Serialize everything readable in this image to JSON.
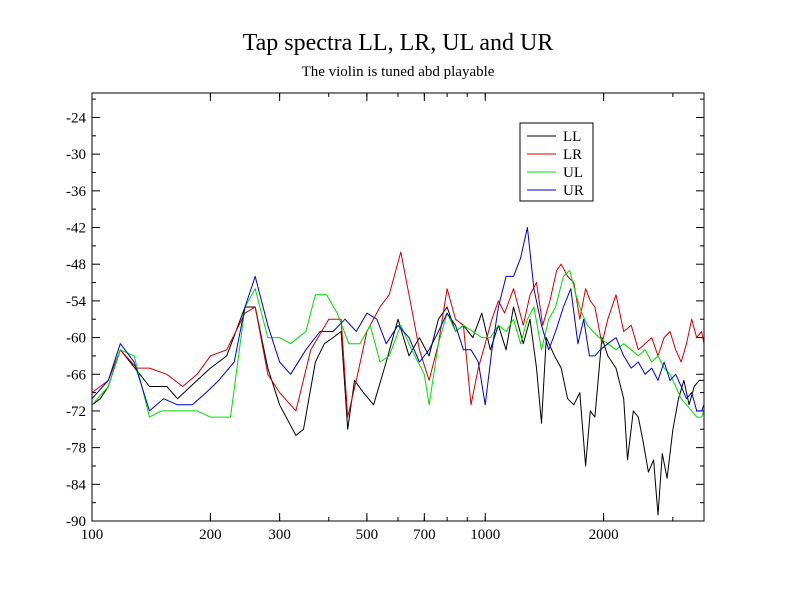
{
  "chart_data": {
    "type": "line",
    "title": "Tap spectra LL, LR, UL and UR",
    "subtitle": "The violin is tuned abd playable",
    "xlabel": "",
    "ylabel": "",
    "x_scale": "log",
    "xlim": [
      100,
      3600
    ],
    "ylim": [
      -90,
      -20
    ],
    "x_ticks": [
      100,
      200,
      300,
      500,
      700,
      1000,
      2000
    ],
    "x_tick_labels": [
      "100",
      "200",
      "300",
      "500",
      "700",
      "1000",
      "2000"
    ],
    "y_ticks": [
      -24,
      -30,
      -36,
      -42,
      -48,
      -54,
      -60,
      -66,
      -72,
      -78,
      -84,
      -90
    ],
    "y_tick_labels": [
      "-24",
      "-30",
      "-36",
      "-42",
      "-48",
      "-54",
      "-60",
      "-66",
      "-72",
      "-78",
      "-84",
      "-90"
    ],
    "legend_position": "top-right",
    "series": [
      {
        "name": "LL",
        "color": "#000000",
        "points": [
          [
            100,
            -71
          ],
          [
            105,
            -70
          ],
          [
            110,
            -68
          ],
          [
            118,
            -62
          ],
          [
            125,
            -64
          ],
          [
            140,
            -68
          ],
          [
            155,
            -68
          ],
          [
            165,
            -70
          ],
          [
            185,
            -67
          ],
          [
            200,
            -65
          ],
          [
            220,
            -63
          ],
          [
            245,
            -55
          ],
          [
            260,
            -55
          ],
          [
            280,
            -65
          ],
          [
            300,
            -71
          ],
          [
            330,
            -76
          ],
          [
            345,
            -75
          ],
          [
            370,
            -64
          ],
          [
            390,
            -61
          ],
          [
            410,
            -60
          ],
          [
            430,
            -59
          ],
          [
            447,
            -75
          ],
          [
            465,
            -67
          ],
          [
            490,
            -69
          ],
          [
            520,
            -71
          ],
          [
            560,
            -64
          ],
          [
            600,
            -57
          ],
          [
            640,
            -63
          ],
          [
            680,
            -60
          ],
          [
            720,
            -63
          ],
          [
            760,
            -57
          ],
          [
            800,
            -55
          ],
          [
            840,
            -59
          ],
          [
            880,
            -58
          ],
          [
            930,
            -60
          ],
          [
            980,
            -56
          ],
          [
            1030,
            -62
          ],
          [
            1080,
            -58
          ],
          [
            1130,
            -62
          ],
          [
            1180,
            -55
          ],
          [
            1250,
            -61
          ],
          [
            1300,
            -57
          ],
          [
            1350,
            -65
          ],
          [
            1390,
            -74
          ],
          [
            1430,
            -60
          ],
          [
            1500,
            -63
          ],
          [
            1560,
            -65
          ],
          [
            1620,
            -70
          ],
          [
            1680,
            -71
          ],
          [
            1740,
            -69
          ],
          [
            1800,
            -81
          ],
          [
            1850,
            -72
          ],
          [
            1900,
            -73
          ],
          [
            1980,
            -60
          ],
          [
            2050,
            -63
          ],
          [
            2150,
            -65
          ],
          [
            2250,
            -70
          ],
          [
            2300,
            -80
          ],
          [
            2380,
            -72
          ],
          [
            2450,
            -73
          ],
          [
            2520,
            -77
          ],
          [
            2600,
            -82
          ],
          [
            2680,
            -80
          ],
          [
            2750,
            -89
          ],
          [
            2820,
            -79
          ],
          [
            2900,
            -83
          ],
          [
            3000,
            -75
          ],
          [
            3100,
            -70
          ],
          [
            3200,
            -67
          ],
          [
            3300,
            -71
          ],
          [
            3400,
            -68
          ],
          [
            3500,
            -67
          ],
          [
            3600,
            -67
          ]
        ]
      },
      {
        "name": "LR",
        "color": "#d00000",
        "points": [
          [
            100,
            -69
          ],
          [
            110,
            -67
          ],
          [
            118,
            -62
          ],
          [
            130,
            -65
          ],
          [
            140,
            -65
          ],
          [
            155,
            -66
          ],
          [
            170,
            -68
          ],
          [
            185,
            -66
          ],
          [
            200,
            -63
          ],
          [
            220,
            -62
          ],
          [
            245,
            -56
          ],
          [
            260,
            -55
          ],
          [
            280,
            -66
          ],
          [
            300,
            -69
          ],
          [
            330,
            -72
          ],
          [
            360,
            -62
          ],
          [
            400,
            -57
          ],
          [
            430,
            -57
          ],
          [
            447,
            -73
          ],
          [
            470,
            -67
          ],
          [
            500,
            -59
          ],
          [
            540,
            -55
          ],
          [
            570,
            -53
          ],
          [
            610,
            -46
          ],
          [
            640,
            -53
          ],
          [
            680,
            -62
          ],
          [
            720,
            -67
          ],
          [
            760,
            -61
          ],
          [
            800,
            -52
          ],
          [
            840,
            -57
          ],
          [
            880,
            -58
          ],
          [
            920,
            -71
          ],
          [
            960,
            -65
          ],
          [
            1000,
            -61
          ],
          [
            1040,
            -57
          ],
          [
            1080,
            -54
          ],
          [
            1120,
            -56
          ],
          [
            1180,
            -52
          ],
          [
            1250,
            -58
          ],
          [
            1300,
            -53
          ],
          [
            1350,
            -51
          ],
          [
            1400,
            -58
          ],
          [
            1460,
            -54
          ],
          [
            1520,
            -49
          ],
          [
            1560,
            -48
          ],
          [
            1620,
            -50
          ],
          [
            1680,
            -51
          ],
          [
            1740,
            -57
          ],
          [
            1800,
            -52
          ],
          [
            1850,
            -54
          ],
          [
            1900,
            -55
          ],
          [
            1980,
            -61
          ],
          [
            2050,
            -57
          ],
          [
            2150,
            -53
          ],
          [
            2250,
            -59
          ],
          [
            2350,
            -58
          ],
          [
            2450,
            -62
          ],
          [
            2550,
            -61
          ],
          [
            2650,
            -60
          ],
          [
            2750,
            -63
          ],
          [
            2850,
            -60
          ],
          [
            2950,
            -59
          ],
          [
            3050,
            -62
          ],
          [
            3150,
            -64
          ],
          [
            3250,
            -61
          ],
          [
            3350,
            -57
          ],
          [
            3450,
            -60
          ],
          [
            3550,
            -59
          ],
          [
            3600,
            -61
          ]
        ]
      },
      {
        "name": "UL",
        "color": "#00dd00",
        "points": [
          [
            100,
            -71
          ],
          [
            110,
            -68
          ],
          [
            118,
            -62
          ],
          [
            128,
            -63
          ],
          [
            140,
            -73
          ],
          [
            150,
            -72
          ],
          [
            165,
            -72
          ],
          [
            185,
            -72
          ],
          [
            200,
            -73
          ],
          [
            225,
            -73
          ],
          [
            245,
            -55
          ],
          [
            260,
            -52
          ],
          [
            280,
            -60
          ],
          [
            300,
            -60
          ],
          [
            320,
            -61
          ],
          [
            350,
            -59
          ],
          [
            370,
            -53
          ],
          [
            395,
            -53
          ],
          [
            420,
            -56
          ],
          [
            450,
            -61
          ],
          [
            480,
            -61
          ],
          [
            510,
            -58
          ],
          [
            540,
            -64
          ],
          [
            570,
            -63
          ],
          [
            610,
            -58
          ],
          [
            650,
            -62
          ],
          [
            700,
            -66
          ],
          [
            720,
            -71
          ],
          [
            760,
            -61
          ],
          [
            800,
            -56
          ],
          [
            840,
            -59
          ],
          [
            880,
            -58
          ],
          [
            930,
            -59
          ],
          [
            980,
            -60
          ],
          [
            1030,
            -60
          ],
          [
            1080,
            -58
          ],
          [
            1130,
            -59
          ],
          [
            1180,
            -57
          ],
          [
            1230,
            -61
          ],
          [
            1280,
            -57
          ],
          [
            1330,
            -55
          ],
          [
            1390,
            -62
          ],
          [
            1450,
            -57
          ],
          [
            1510,
            -55
          ],
          [
            1580,
            -50
          ],
          [
            1640,
            -49
          ],
          [
            1700,
            -53
          ],
          [
            1760,
            -56
          ],
          [
            1820,
            -58
          ],
          [
            1880,
            -59
          ],
          [
            1950,
            -60
          ],
          [
            2050,
            -61
          ],
          [
            2150,
            -62
          ],
          [
            2250,
            -61
          ],
          [
            2350,
            -62
          ],
          [
            2450,
            -63
          ],
          [
            2550,
            -62
          ],
          [
            2650,
            -64
          ],
          [
            2750,
            -63
          ],
          [
            2850,
            -65
          ],
          [
            2950,
            -66
          ],
          [
            3050,
            -68
          ],
          [
            3150,
            -70
          ],
          [
            3250,
            -71
          ],
          [
            3350,
            -72
          ],
          [
            3450,
            -73
          ],
          [
            3550,
            -73
          ],
          [
            3600,
            -72
          ]
        ]
      },
      {
        "name": "UR",
        "color": "#0000cc",
        "points": [
          [
            100,
            -70
          ],
          [
            110,
            -67
          ],
          [
            118,
            -61
          ],
          [
            128,
            -64
          ],
          [
            140,
            -72
          ],
          [
            152,
            -70
          ],
          [
            165,
            -71
          ],
          [
            180,
            -71
          ],
          [
            195,
            -69
          ],
          [
            210,
            -67
          ],
          [
            230,
            -64
          ],
          [
            245,
            -55
          ],
          [
            260,
            -50
          ],
          [
            280,
            -58
          ],
          [
            300,
            -64
          ],
          [
            320,
            -66
          ],
          [
            350,
            -62
          ],
          [
            380,
            -59
          ],
          [
            410,
            -59
          ],
          [
            440,
            -57
          ],
          [
            470,
            -59
          ],
          [
            500,
            -56
          ],
          [
            530,
            -57
          ],
          [
            560,
            -61
          ],
          [
            600,
            -58
          ],
          [
            640,
            -60
          ],
          [
            680,
            -64
          ],
          [
            720,
            -62
          ],
          [
            760,
            -59
          ],
          [
            800,
            -56
          ],
          [
            840,
            -58
          ],
          [
            880,
            -62
          ],
          [
            920,
            -62
          ],
          [
            960,
            -64
          ],
          [
            1000,
            -71
          ],
          [
            1040,
            -62
          ],
          [
            1080,
            -55
          ],
          [
            1130,
            -50
          ],
          [
            1180,
            -50
          ],
          [
            1230,
            -47
          ],
          [
            1280,
            -42
          ],
          [
            1330,
            -52
          ],
          [
            1390,
            -58
          ],
          [
            1450,
            -62
          ],
          [
            1510,
            -59
          ],
          [
            1580,
            -55
          ],
          [
            1650,
            -52
          ],
          [
            1720,
            -61
          ],
          [
            1780,
            -57
          ],
          [
            1840,
            -63
          ],
          [
            1900,
            -63
          ],
          [
            1960,
            -62
          ],
          [
            2050,
            -61
          ],
          [
            2150,
            -60
          ],
          [
            2250,
            -63
          ],
          [
            2350,
            -65
          ],
          [
            2450,
            -64
          ],
          [
            2550,
            -66
          ],
          [
            2650,
            -65
          ],
          [
            2750,
            -67
          ],
          [
            2850,
            -64
          ],
          [
            2950,
            -67
          ],
          [
            3050,
            -66
          ],
          [
            3150,
            -68
          ],
          [
            3250,
            -70
          ],
          [
            3350,
            -69
          ],
          [
            3450,
            -72
          ],
          [
            3550,
            -72
          ],
          [
            3600,
            -71
          ]
        ]
      }
    ]
  }
}
